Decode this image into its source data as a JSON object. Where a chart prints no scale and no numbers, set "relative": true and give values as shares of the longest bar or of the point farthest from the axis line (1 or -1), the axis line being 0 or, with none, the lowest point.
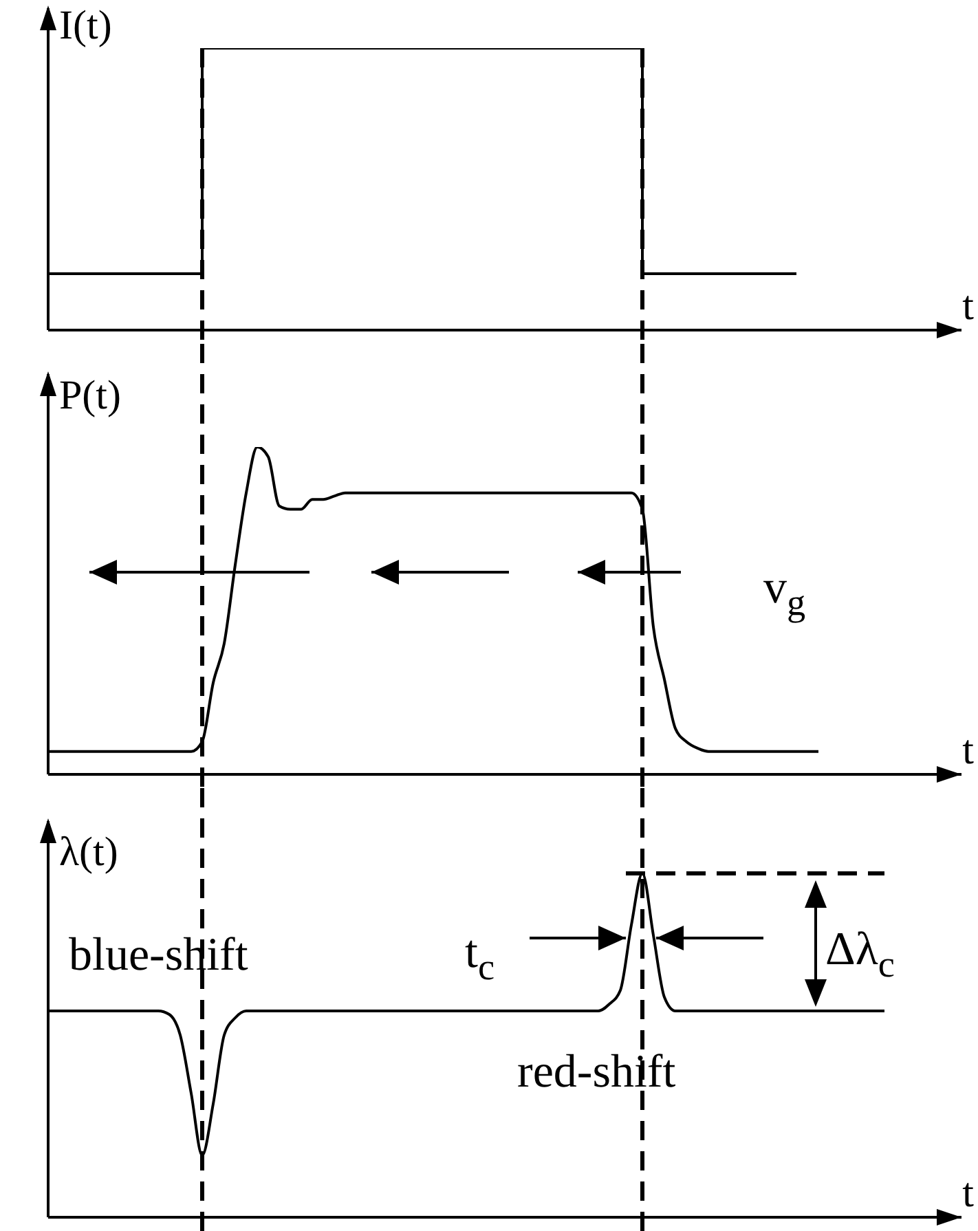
{
  "chart_data": [
    {
      "type": "step",
      "relative": true,
      "ylabel": "I(t)",
      "line_style": "solid",
      "marker": "none",
      "categories": [
        null,
        null,
        null,
        null,
        null,
        null,
        null,
        null,
        null,
        null,
        null,
        null,
        null,
        null,
        null,
        null,
        null,
        null,
        null,
        null,
        null,
        null,
        null,
        null,
        null,
        null,
        null,
        null,
        null,
        null,
        null,
        null,
        null,
        null,
        null,
        null,
        null,
        null,
        null,
        null,
        null,
        null,
        null,
        null,
        null,
        null,
        null,
        null,
        null,
        null,
        null,
        null,
        null,
        null,
        null,
        null,
        null,
        null,
        null,
        null,
        null,
        null,
        null,
        null,
        null,
        null,
        null,
        null,
        null,
        null,
        null,
        null,
        null,
        null,
        null,
        null,
        null,
        null,
        null,
        null,
        null,
        null,
        null,
        null
      ],
      "series": [
        {
          "color": "#000000",
          "values": [
            0.2,
            0.2,
            0.2,
            0.2,
            0.2,
            0.2,
            0.2,
            0.2,
            0.2,
            0.2,
            0.2,
            0.2,
            0.2,
            0.2,
            1,
            1,
            1,
            1,
            1,
            1,
            1,
            1,
            1,
            1,
            1,
            1,
            1,
            1,
            1,
            1,
            1,
            1,
            1,
            1,
            1,
            1,
            1,
            1,
            1,
            1,
            1,
            1,
            1,
            1,
            1,
            1,
            1,
            1,
            1,
            1,
            1,
            1,
            1,
            1,
            0.2,
            0.2,
            0.2,
            0.2,
            0.2,
            0.2,
            0.2,
            0.2,
            0.2,
            0.2,
            0.2,
            0.2,
            0.2,
            0.2,
            0.2,
            null,
            null,
            null,
            null,
            null,
            null,
            null,
            null,
            null,
            null,
            null,
            null,
            null,
            null,
            null
          ]
        }
      ],
      "xlabel": "t"
    },
    {
      "type": "line",
      "relative": true,
      "ylabel": "P(t)",
      "xlabel": "t",
      "line_style": "solid",
      "marker": "none",
      "categories": [
        null,
        null,
        null,
        null,
        null,
        null,
        null,
        null,
        null,
        null,
        null,
        null,
        null,
        null,
        null,
        null,
        null,
        null,
        null,
        null,
        null,
        null,
        null,
        null,
        null,
        null,
        null,
        null,
        null,
        null,
        null,
        null,
        null,
        null,
        null,
        null,
        null,
        null,
        null,
        null,
        null,
        null,
        null,
        null,
        null,
        null,
        null,
        null,
        null,
        null,
        null,
        null,
        null,
        null,
        null,
        null,
        null,
        null,
        null,
        null,
        null,
        null,
        null,
        null,
        null,
        null,
        null,
        null,
        null,
        null,
        null,
        null,
        null,
        null,
        null,
        null,
        null,
        null,
        null,
        null,
        null,
        null,
        null,
        null
      ],
      "series": [
        {
          "color": "#000000",
          "values": [
            0.07,
            0.07,
            0.07,
            0.07,
            0.07,
            0.07,
            0.07,
            0.07,
            0.07,
            0.07,
            0.07,
            0.07,
            0.07,
            0.07,
            0.1,
            0.28,
            0.4,
            0.64,
            0.86,
            1,
            0.97,
            0.82,
            0.81,
            0.81,
            0.84,
            0.84,
            0.85,
            0.86,
            0.86,
            0.86,
            0.86,
            0.86,
            0.86,
            0.86,
            0.86,
            0.86,
            0.86,
            0.86,
            0.86,
            0.86,
            0.86,
            0.86,
            0.86,
            0.86,
            0.86,
            0.86,
            0.86,
            0.86,
            0.86,
            0.86,
            0.86,
            0.86,
            0.86,
            0.86,
            0.81,
            0.45,
            0.29,
            0.14,
            0.1,
            0.08,
            0.07,
            0.07,
            0.07,
            0.07,
            0.07,
            0.07,
            0.07,
            0.07,
            0.07,
            0.07,
            0.07,
            null,
            null,
            null,
            null,
            null,
            null,
            null,
            null,
            null,
            null,
            null,
            null,
            null
          ]
        }
      ],
      "annotations": [
        "v$_{g}$"
      ]
    },
    {
      "type": "line",
      "relative": true,
      "ylabel": "λ(t)",
      "xlabel": "t",
      "line_style": "solid",
      "marker": "none",
      "categories": [
        null,
        null,
        null,
        null,
        null,
        null,
        null,
        null,
        null,
        null,
        null,
        null,
        null,
        null,
        null,
        null,
        null,
        null,
        null,
        null,
        null,
        null,
        null,
        null,
        null,
        null,
        null,
        null,
        null,
        null,
        null,
        null,
        null,
        null,
        null,
        null,
        null,
        null,
        null,
        null,
        null,
        null,
        null,
        null,
        null,
        null,
        null,
        null,
        null,
        null,
        null,
        null,
        null,
        null,
        null,
        null,
        null,
        null,
        null,
        null,
        null,
        null,
        null,
        null,
        null,
        null,
        null,
        null,
        null,
        null,
        null,
        null,
        null,
        null,
        null,
        null,
        null,
        null,
        null,
        null,
        null,
        null,
        null,
        null
      ],
      "series": [
        {
          "color": "#000000",
          "values": [
            0.6,
            0.6,
            0.6,
            0.6,
            0.6,
            0.6,
            0.6,
            0.6,
            0.6,
            0.6,
            0.6,
            0.59,
            0.53,
            0.36,
            0.18,
            0.33,
            0.53,
            0.58,
            0.6,
            0.6,
            0.6,
            0.6,
            0.6,
            0.6,
            0.6,
            0.6,
            0.6,
            0.6,
            0.6,
            0.6,
            0.6,
            0.6,
            0.6,
            0.6,
            0.6,
            0.6,
            0.6,
            0.6,
            0.6,
            0.6,
            0.6,
            0.6,
            0.6,
            0.6,
            0.6,
            0.6,
            0.6,
            0.6,
            0.6,
            0.6,
            0.6,
            0.62,
            0.66,
            0.85,
            1,
            0.82,
            0.64,
            0.6,
            0.6,
            0.6,
            0.6,
            0.6,
            0.6,
            0.6,
            0.6,
            0.6,
            0.6,
            0.6,
            0.6,
            0.6,
            0.6,
            0.6,
            0.6,
            0.6,
            0.6,
            0.6,
            0.6,
            null,
            null,
            null,
            null,
            null,
            null,
            null
          ]
        }
      ],
      "ref_lines": [
        {
          "axis": "y",
          "value": 1,
          "color": "#000000",
          "line_style": "dashed"
        }
      ],
      "annotations": [
        "blue-shift",
        "t$_{c}$",
        "Δλ$_{c}$",
        "red-shift"
      ]
    }
  ]
}
